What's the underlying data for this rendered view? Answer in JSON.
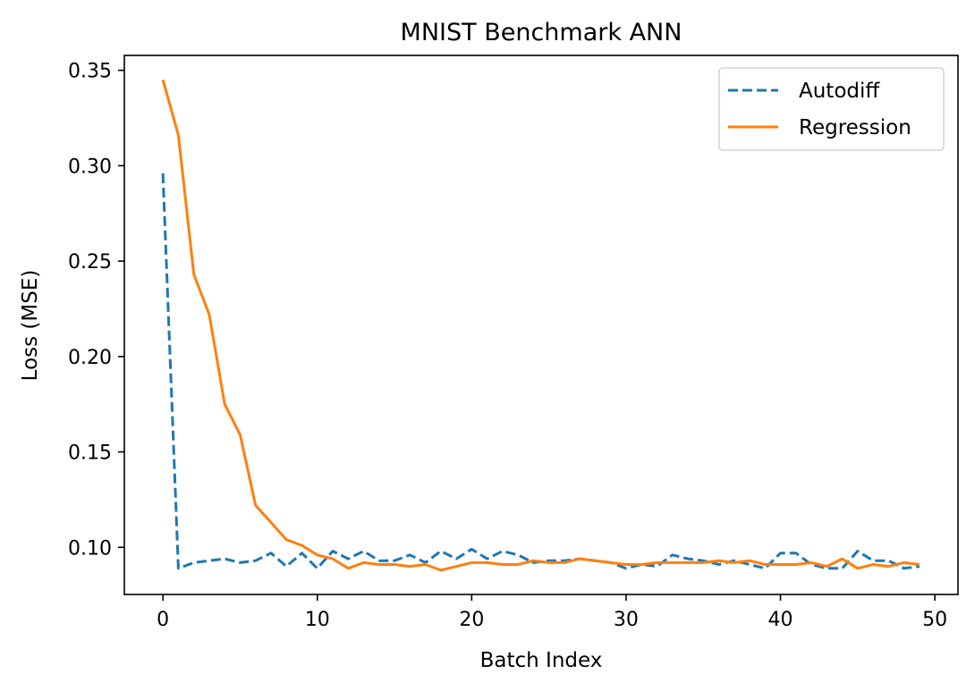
{
  "chart_data": {
    "type": "line",
    "title": "MNIST Benchmark ANN",
    "xlabel": "Batch Index",
    "ylabel": "Loss (MSE)",
    "xlim": [
      -2.5,
      51.5
    ],
    "ylim": [
      0.0753,
      0.3578
    ],
    "xticks": [
      0,
      10,
      20,
      30,
      40,
      50
    ],
    "xtick_labels": [
      "0",
      "10",
      "20",
      "30",
      "40",
      "50"
    ],
    "yticks": [
      0.1,
      0.15,
      0.2,
      0.25,
      0.3,
      0.35
    ],
    "ytick_labels": [
      "0.10",
      "0.15",
      "0.20",
      "0.25",
      "0.30",
      "0.35"
    ],
    "grid": false,
    "legend_position": "top-right",
    "x": [
      0,
      1,
      2,
      3,
      4,
      5,
      6,
      7,
      8,
      9,
      10,
      11,
      12,
      13,
      14,
      15,
      16,
      17,
      18,
      19,
      20,
      21,
      22,
      23,
      24,
      25,
      26,
      27,
      28,
      29,
      30,
      31,
      32,
      33,
      34,
      35,
      36,
      37,
      38,
      39,
      40,
      41,
      42,
      43,
      44,
      45,
      46,
      47,
      48,
      49
    ],
    "series": [
      {
        "name": "Autodiff",
        "color": "#1f77b4",
        "dash": "dashed",
        "values": [
          0.296,
          0.089,
          0.092,
          0.093,
          0.094,
          0.092,
          0.093,
          0.097,
          0.09,
          0.097,
          0.089,
          0.098,
          0.094,
          0.098,
          0.093,
          0.093,
          0.096,
          0.092,
          0.098,
          0.094,
          0.099,
          0.094,
          0.098,
          0.096,
          0.092,
          0.093,
          0.093,
          0.094,
          0.093,
          0.092,
          0.089,
          0.091,
          0.09,
          0.096,
          0.094,
          0.093,
          0.091,
          0.093,
          0.091,
          0.089,
          0.097,
          0.097,
          0.091,
          0.089,
          0.089,
          0.098,
          0.093,
          0.093,
          0.089,
          0.09
        ]
      },
      {
        "name": "Regression",
        "color": "#ff7f0e",
        "dash": "solid",
        "values": [
          0.345,
          0.316,
          0.243,
          0.222,
          0.175,
          0.159,
          0.122,
          0.113,
          0.104,
          0.101,
          0.096,
          0.094,
          0.089,
          0.092,
          0.091,
          0.091,
          0.09,
          0.091,
          0.088,
          0.09,
          0.092,
          0.092,
          0.091,
          0.091,
          0.093,
          0.092,
          0.092,
          0.094,
          0.093,
          0.092,
          0.091,
          0.091,
          0.092,
          0.092,
          0.092,
          0.092,
          0.093,
          0.092,
          0.093,
          0.091,
          0.091,
          0.091,
          0.092,
          0.09,
          0.094,
          0.089,
          0.091,
          0.09,
          0.092,
          0.091
        ]
      }
    ]
  }
}
